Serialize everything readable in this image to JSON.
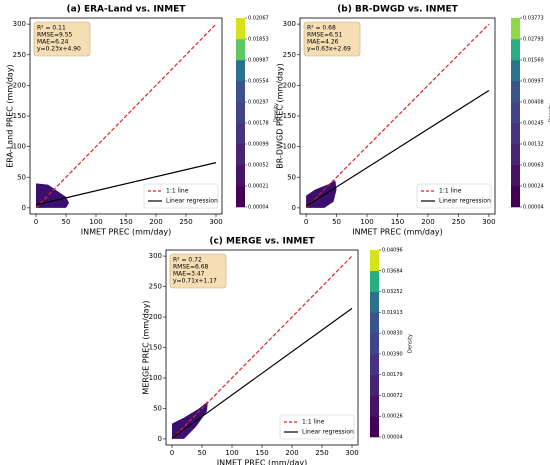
{
  "chart_data": [
    {
      "type": "density",
      "title": "(a) ERA-Land vs. INMET",
      "x_label": "INMET PREC (mm/day)",
      "y_label": "ERA-Land PREC (mm/day)",
      "xlim": [
        -10,
        310
      ],
      "ylim": [
        -10,
        310
      ],
      "xticks": [
        0,
        50,
        100,
        150,
        200,
        250,
        300
      ],
      "yticks": [
        0,
        50,
        100,
        150,
        200,
        250,
        300
      ],
      "stats": [
        "R² = 0.11",
        "RMSE=9.55",
        "MAE=6.24",
        "y=0.23x+4.90"
      ],
      "density_color": "#3b0f70",
      "contour": {
        "x": [
          0,
          0,
          20,
          35,
          50,
          55,
          50
        ],
        "y": [
          0,
          40,
          38,
          28,
          18,
          8,
          0
        ]
      },
      "series": [
        {
          "name": "1:1 line",
          "color": "#d62728",
          "dashed": true,
          "x": [
            0,
            300
          ],
          "values": [
            0,
            300
          ]
        },
        {
          "name": "Linear regression",
          "color": "#000000",
          "dashed": false,
          "x": [
            0,
            300
          ],
          "values": [
            4.9,
            73.9
          ]
        }
      ],
      "colorbar": {
        "label": "Density",
        "levels": [
          4e-05,
          0.00021,
          0.00052,
          0.00099,
          0.00178,
          0.00297,
          0.00554,
          0.00987,
          0.01853,
          0.02067
        ],
        "colors": [
          "#440154",
          "#471365",
          "#482475",
          "#463480",
          "#414487",
          "#3b528b",
          "#2c728e",
          "#5ec962",
          "#d8e219"
        ]
      }
    },
    {
      "type": "density",
      "title": "(b) BR-DWGD vs. INMET",
      "x_label": "INMET PREC (mm/day)",
      "y_label": "BR-DWGD PREC (mm/day)",
      "xlim": [
        -10,
        310
      ],
      "ylim": [
        -10,
        310
      ],
      "xticks": [
        0,
        50,
        100,
        150,
        200,
        250,
        300
      ],
      "yticks": [
        0,
        50,
        100,
        150,
        200,
        250,
        300
      ],
      "stats": [
        "R² = 0.68",
        "RMSE=6.51",
        "MAE=4.26",
        "y=0.63x+2.69"
      ],
      "density_color": "#3b0f70",
      "contour": {
        "x": [
          0,
          0,
          15,
          35,
          48,
          50,
          45,
          30
        ],
        "y": [
          0,
          20,
          30,
          38,
          45,
          30,
          10,
          0
        ]
      },
      "series": [
        {
          "name": "1:1 line",
          "color": "#d62728",
          "dashed": true,
          "x": [
            0,
            300
          ],
          "values": [
            0,
            300
          ]
        },
        {
          "name": "Linear regression",
          "color": "#000000",
          "dashed": false,
          "x": [
            0,
            300
          ],
          "values": [
            2.69,
            191.69
          ]
        }
      ],
      "colorbar": {
        "label": "Density",
        "levels": [
          4e-05,
          0.00024,
          0.00063,
          0.00132,
          0.00245,
          0.00408,
          0.00997,
          {
            "value": 0.0156,
            "label": "0.01560"
          },
          0.02793,
          0.03773
        ],
        "colors": [
          "#440154",
          "#471365",
          "#482475",
          "#463480",
          "#414487",
          "#3b528b",
          "#2c728e",
          "#28ae80",
          "#8fd744"
        ]
      }
    },
    {
      "type": "density",
      "title": "(c) MERGE vs. INMET",
      "x_label": "INMET PREC (mm/day)",
      "y_label": "MERGE PREC (mm/day)",
      "xlim": [
        -10,
        310
      ],
      "ylim": [
        -10,
        310
      ],
      "xticks": [
        0,
        50,
        100,
        150,
        200,
        250,
        300
      ],
      "yticks": [
        0,
        50,
        100,
        150,
        200,
        250,
        300
      ],
      "stats": [
        "R² = 0.72",
        "RMSE=6.68",
        "MAE=3.47",
        "y=0.71x+1.17"
      ],
      "density_color": "#3b0f70",
      "contour": {
        "x": [
          0,
          0,
          20,
          45,
          60,
          58,
          40,
          20
        ],
        "y": [
          0,
          25,
          35,
          50,
          62,
          45,
          20,
          0
        ]
      },
      "series": [
        {
          "name": "1:1 line",
          "color": "#d62728",
          "dashed": true,
          "x": [
            0,
            300
          ],
          "values": [
            0,
            300
          ]
        },
        {
          "name": "Linear regression",
          "color": "#000000",
          "dashed": false,
          "x": [
            0,
            300
          ],
          "values": [
            1.17,
            214.17
          ]
        }
      ],
      "colorbar": {
        "label": "Density",
        "levels": [
          4e-05,
          0.00026,
          0.00072,
          0.00179,
          {
            "value": 0.0039,
            "label": "0.00390"
          },
          {
            "value": 0.0083,
            "label": "0.00830"
          },
          0.01913,
          0.03252,
          0.03684,
          0.04096
        ],
        "colors": [
          "#440154",
          "#471365",
          "#482475",
          "#463480",
          "#414487",
          "#3b528b",
          "#2c728e",
          "#28ae80",
          "#d8e219"
        ]
      }
    }
  ]
}
